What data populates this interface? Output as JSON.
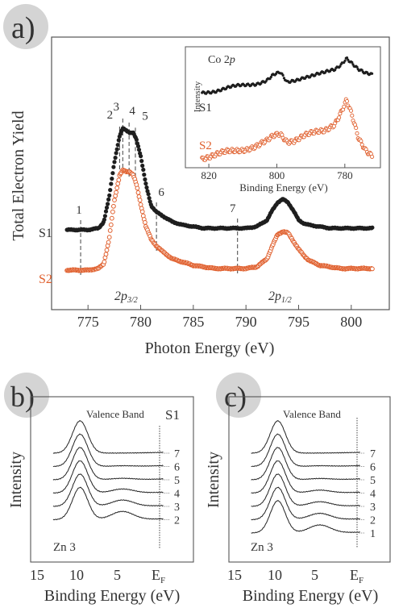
{
  "chart_data": [
    {
      "type": "scatter",
      "panel_label": "a)",
      "xlabel": "Photon Energy (eV)",
      "ylabel": "Total Electron Yield",
      "xlim": [
        772,
        803
      ],
      "xticks": [
        775,
        780,
        785,
        790,
        795,
        800
      ],
      "grid": false,
      "colors": {
        "S1": "#1e1e1e",
        "S2": "#e0602e"
      },
      "series": [
        {
          "name": "S1",
          "x": [
            773,
            774,
            775,
            776,
            776.5,
            777,
            777.5,
            778,
            778.3,
            778.6,
            779,
            779.3,
            779.6,
            780,
            780.5,
            781,
            781.5,
            782,
            783,
            784,
            785,
            786,
            787,
            788,
            789,
            790,
            791,
            792,
            792.5,
            793,
            793.5,
            794,
            794.5,
            795,
            795.5,
            796,
            797,
            798,
            799,
            800,
            801,
            802
          ],
          "y": [
            0.3,
            0.3,
            0.3,
            0.31,
            0.35,
            0.5,
            0.72,
            0.88,
            0.93,
            0.92,
            0.9,
            0.9,
            0.86,
            0.76,
            0.58,
            0.45,
            0.41,
            0.39,
            0.35,
            0.33,
            0.32,
            0.31,
            0.31,
            0.31,
            0.31,
            0.31,
            0.32,
            0.36,
            0.42,
            0.47,
            0.49,
            0.47,
            0.42,
            0.36,
            0.34,
            0.33,
            0.32,
            0.31,
            0.31,
            0.31,
            0.31,
            0.31
          ]
        },
        {
          "name": "S2",
          "x": [
            773,
            774,
            775,
            776,
            776.5,
            777,
            777.5,
            778,
            778.3,
            778.6,
            779,
            779.3,
            779.6,
            780,
            780.5,
            781,
            781.5,
            782,
            783,
            784,
            785,
            786,
            787,
            788,
            789,
            790,
            791,
            792,
            792.5,
            793,
            793.5,
            794,
            794.5,
            795,
            795.5,
            796,
            797,
            798,
            799,
            800,
            801,
            802
          ],
          "y": [
            0.05,
            0.05,
            0.05,
            0.06,
            0.09,
            0.24,
            0.48,
            0.64,
            0.67,
            0.66,
            0.66,
            0.64,
            0.58,
            0.46,
            0.32,
            0.24,
            0.2,
            0.17,
            0.12,
            0.1,
            0.08,
            0.07,
            0.06,
            0.06,
            0.06,
            0.06,
            0.07,
            0.12,
            0.2,
            0.27,
            0.29,
            0.28,
            0.23,
            0.18,
            0.14,
            0.11,
            0.08,
            0.07,
            0.06,
            0.06,
            0.06,
            0.06
          ]
        }
      ],
      "series_labels": [
        "S1",
        "S2"
      ],
      "peak_labels": [
        {
          "text": "2p",
          "sub": "3/2",
          "x": 779
        },
        {
          "text": "2p",
          "sub": "1/2",
          "x": 793.5
        }
      ],
      "energy_markers": [
        {
          "label": "1",
          "x": 774.3
        },
        {
          "label": "2",
          "x": 778.0
        },
        {
          "label": "3",
          "x": 778.3
        },
        {
          "label": "4",
          "x": 778.9
        },
        {
          "label": "5",
          "x": 779.5
        },
        {
          "label": "6",
          "x": 781.5
        },
        {
          "label": "7",
          "x": 789.2
        }
      ]
    },
    {
      "type": "scatter",
      "panel": "a) inset",
      "title": "Co 2p",
      "xlabel": "Binding Energy (eV)",
      "ylabel": "Intensity",
      "xlim": [
        825,
        770
      ],
      "xticks": [
        820,
        800,
        780
      ],
      "series": [
        {
          "name": "S1",
          "x": [
            822,
            818,
            814,
            810,
            806,
            803,
            801,
            799,
            797,
            795,
            792,
            789,
            786,
            783,
            781,
            779.5,
            778,
            776,
            774,
            772
          ],
          "y": [
            0.5,
            0.53,
            0.57,
            0.6,
            0.63,
            0.67,
            0.74,
            0.77,
            0.64,
            0.67,
            0.72,
            0.74,
            0.77,
            0.82,
            0.9,
            0.99,
            0.92,
            0.82,
            0.76,
            0.74
          ]
        },
        {
          "name": "S2",
          "x": [
            822,
            818,
            814,
            810,
            806,
            803,
            801,
            799,
            797,
            795,
            792,
            789,
            786,
            783,
            781,
            779.5,
            778,
            776,
            774,
            772
          ],
          "y": [
            0.05,
            0.08,
            0.12,
            0.16,
            0.2,
            0.25,
            0.32,
            0.36,
            0.27,
            0.28,
            0.33,
            0.36,
            0.4,
            0.5,
            0.66,
            0.8,
            0.6,
            0.28,
            0.14,
            0.08
          ]
        }
      ],
      "series_labels": [
        "S1",
        "S2"
      ]
    },
    {
      "type": "line",
      "panel_label": "b)",
      "title": "Valence Band",
      "sample": "S1",
      "xlabel": "Binding Energy (eV)",
      "ylabel": "Intensity",
      "xlim": [
        17,
        -1
      ],
      "xticks": [
        "15",
        "10",
        "5",
        "E",
        "F"
      ],
      "fermi_label": {
        "text": "E",
        "sub": "F"
      },
      "feature_label": "Zn 3",
      "curve_labels": [
        "7",
        "6",
        "5",
        "4",
        "3",
        "2"
      ],
      "feature_strength": [
        0.0,
        0.05,
        0.12,
        0.35,
        0.55,
        0.72
      ]
    },
    {
      "type": "line",
      "panel_label": "c)",
      "title": "Valence Band",
      "xlabel": "Binding Energy (eV)",
      "ylabel": "Intensity",
      "xlim": [
        17,
        -1
      ],
      "xticks": [
        "15",
        "10",
        "5",
        "E",
        "F"
      ],
      "fermi_label": {
        "text": "E",
        "sub": "F"
      },
      "feature_label": "Zn 3",
      "curve_labels": [
        "7",
        "6",
        "5",
        "4",
        "3",
        "2",
        "1"
      ],
      "feature_strength": [
        0.0,
        0.05,
        0.1,
        0.25,
        0.4,
        0.55,
        0.7
      ]
    }
  ]
}
